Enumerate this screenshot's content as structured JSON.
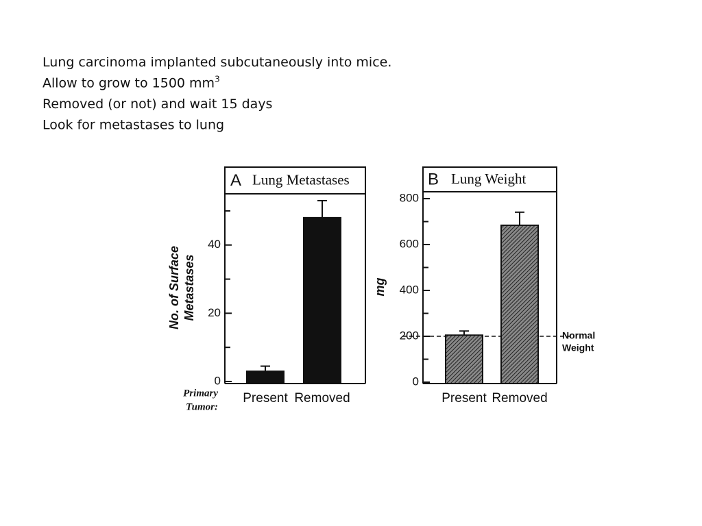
{
  "slide": {
    "lines": [
      {
        "text": "Lung carcinoma implanted subcutaneously into mice."
      },
      {
        "text": "Allow to grow to 1500 mm",
        "superscript": "3"
      },
      {
        "text": "Removed (or not) and wait 15 days"
      },
      {
        "text": "Look for metastases to lung"
      }
    ]
  },
  "chart_data": [
    {
      "type": "bar",
      "panel": "A",
      "title": "Lung Metastases",
      "ylabel": [
        "No. of Surface",
        "Metastases"
      ],
      "xlabel": [
        "Primary",
        "Tumor:"
      ],
      "categories": [
        "Present",
        "Removed"
      ],
      "values": [
        3,
        48
      ],
      "errors": [
        1.5,
        5
      ],
      "color": "#111111",
      "ylim": [
        0,
        55
      ],
      "yticks": [
        0,
        20,
        40
      ],
      "minor_yticks": [
        10,
        30,
        50
      ]
    },
    {
      "type": "bar",
      "panel": "B",
      "title": "Lung Weight",
      "ylabel": [
        "mg"
      ],
      "categories": [
        "Present",
        "Removed"
      ],
      "values": [
        205,
        684
      ],
      "errors": [
        18,
        57
      ],
      "color": "#333333",
      "hatched": true,
      "ylim": [
        0,
        830
      ],
      "yticks": [
        0,
        200,
        400,
        600,
        800
      ],
      "minor_yticks": [
        100,
        300,
        500,
        700
      ],
      "reference_line": {
        "value": 200,
        "label": [
          "Normal",
          "Weight"
        ]
      }
    }
  ]
}
